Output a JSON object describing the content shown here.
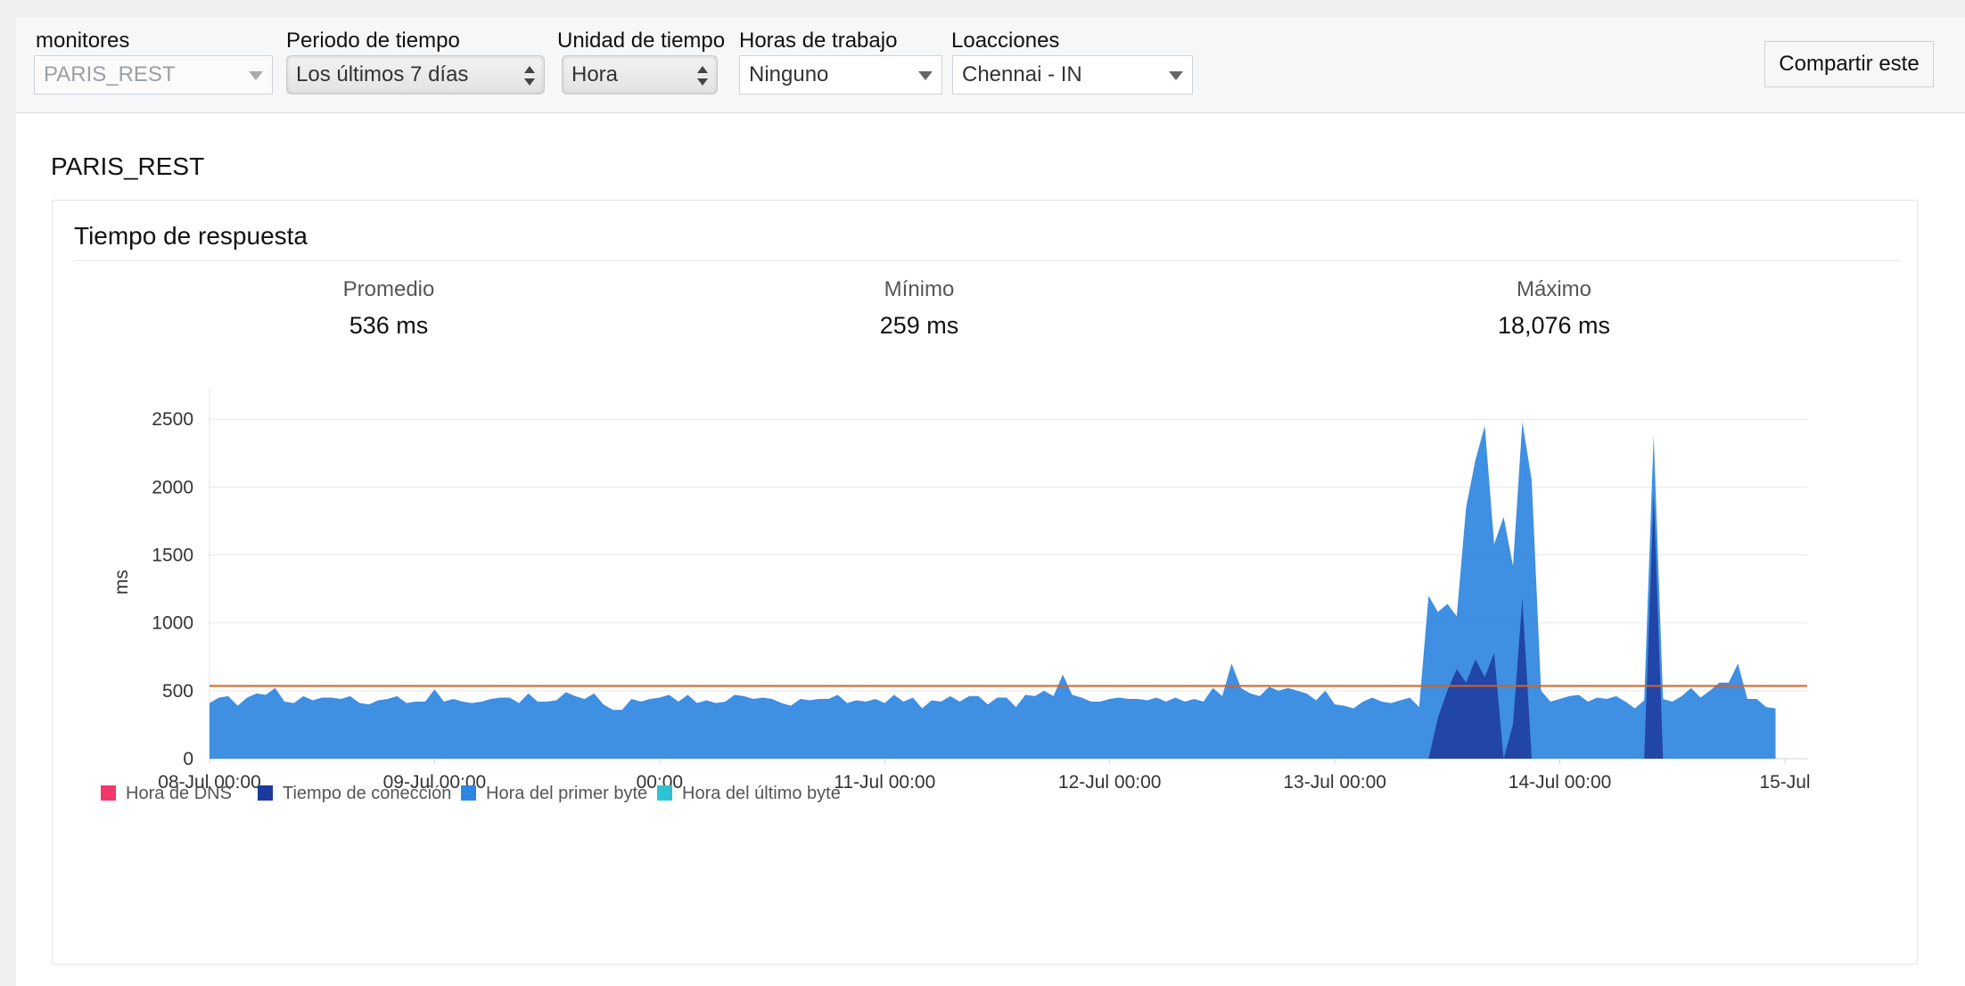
{
  "filters": {
    "monitors": {
      "label": "monitores",
      "value": "PARIS_REST"
    },
    "period": {
      "label": "Periodo de tiempo",
      "value": "Los últimos 7 días"
    },
    "unit": {
      "label": "Unidad de tiempo",
      "value": "Hora"
    },
    "work_hours": {
      "label": "Horas de trabajo",
      "value": "Ninguno"
    },
    "locations": {
      "label": "Loacciones",
      "value": "Chennai - IN"
    }
  },
  "share_label": "Compartir este",
  "monitor_title": "PARIS_REST",
  "card": {
    "title": "Tiempo de respuesta",
    "stats": {
      "avg": {
        "label": "Promedio",
        "value": "536 ms"
      },
      "min": {
        "label": "Mínimo",
        "value": "259 ms"
      },
      "max": {
        "label": "Máximo",
        "value": "18,076 ms"
      }
    }
  },
  "colors": {
    "dns": "#f0386b",
    "connection": "#1c3a9c",
    "first_byte": "#2f86e0",
    "last_byte": "#2ec3d2",
    "average_line": "#e0601a"
  },
  "chart_data": {
    "type": "area",
    "ylabel": "ms",
    "ylim": [
      0,
      2600
    ],
    "yticks": [
      0,
      500,
      1000,
      1500,
      2000,
      2500
    ],
    "x_tick_labels": [
      "08-Jul 00:00",
      "09-Jul 00:00",
      "00:00",
      "11-Jul 00:00",
      "12-Jul 00:00",
      "13-Jul 00:00",
      "14-Jul 00:00",
      "15-Jul"
    ],
    "x_range_hours": [
      0,
      168
    ],
    "average_line_ms": 536,
    "legend": [
      {
        "name": "Hora de DNS",
        "color_key": "dns"
      },
      {
        "name": "Tiempo de conección",
        "color_key": "connection"
      },
      {
        "name": "Hora del primer byte",
        "color_key": "first_byte"
      },
      {
        "name": "Hora del último byte",
        "color_key": "last_byte"
      }
    ],
    "series": [
      {
        "name": "Hora del primer byte",
        "color_key": "first_byte",
        "points": [
          [
            0,
            410
          ],
          [
            1,
            450
          ],
          [
            2,
            460
          ],
          [
            3,
            390
          ],
          [
            4,
            450
          ],
          [
            5,
            480
          ],
          [
            6,
            470
          ],
          [
            7,
            520
          ],
          [
            8,
            420
          ],
          [
            9,
            410
          ],
          [
            10,
            460
          ],
          [
            11,
            430
          ],
          [
            12,
            450
          ],
          [
            13,
            450
          ],
          [
            14,
            440
          ],
          [
            15,
            460
          ],
          [
            16,
            410
          ],
          [
            17,
            400
          ],
          [
            18,
            430
          ],
          [
            19,
            440
          ],
          [
            20,
            460
          ],
          [
            21,
            410
          ],
          [
            22,
            420
          ],
          [
            23,
            420
          ],
          [
            24,
            510
          ],
          [
            25,
            420
          ],
          [
            26,
            440
          ],
          [
            27,
            420
          ],
          [
            28,
            410
          ],
          [
            29,
            420
          ],
          [
            30,
            440
          ],
          [
            31,
            450
          ],
          [
            32,
            450
          ],
          [
            33,
            410
          ],
          [
            34,
            480
          ],
          [
            35,
            420
          ],
          [
            36,
            420
          ],
          [
            37,
            430
          ],
          [
            38,
            490
          ],
          [
            39,
            460
          ],
          [
            40,
            440
          ],
          [
            41,
            480
          ],
          [
            42,
            400
          ],
          [
            43,
            360
          ],
          [
            44,
            360
          ],
          [
            45,
            440
          ],
          [
            46,
            420
          ],
          [
            47,
            440
          ],
          [
            48,
            450
          ],
          [
            49,
            470
          ],
          [
            50,
            420
          ],
          [
            51,
            470
          ],
          [
            52,
            410
          ],
          [
            53,
            430
          ],
          [
            54,
            410
          ],
          [
            55,
            420
          ],
          [
            56,
            470
          ],
          [
            57,
            460
          ],
          [
            58,
            440
          ],
          [
            59,
            450
          ],
          [
            60,
            440
          ],
          [
            61,
            410
          ],
          [
            62,
            390
          ],
          [
            63,
            440
          ],
          [
            64,
            430
          ],
          [
            65,
            440
          ],
          [
            66,
            440
          ],
          [
            67,
            470
          ],
          [
            68,
            410
          ],
          [
            69,
            430
          ],
          [
            70,
            420
          ],
          [
            71,
            440
          ],
          [
            72,
            410
          ],
          [
            73,
            470
          ],
          [
            74,
            420
          ],
          [
            75,
            450
          ],
          [
            76,
            370
          ],
          [
            77,
            430
          ],
          [
            78,
            420
          ],
          [
            79,
            460
          ],
          [
            80,
            420
          ],
          [
            81,
            460
          ],
          [
            82,
            460
          ],
          [
            83,
            400
          ],
          [
            84,
            450
          ],
          [
            85,
            450
          ],
          [
            86,
            380
          ],
          [
            87,
            470
          ],
          [
            88,
            460
          ],
          [
            89,
            500
          ],
          [
            90,
            460
          ],
          [
            91,
            620
          ],
          [
            92,
            470
          ],
          [
            93,
            450
          ],
          [
            94,
            420
          ],
          [
            95,
            420
          ],
          [
            96,
            440
          ],
          [
            97,
            450
          ],
          [
            98,
            440
          ],
          [
            99,
            440
          ],
          [
            100,
            430
          ],
          [
            101,
            450
          ],
          [
            102,
            420
          ],
          [
            103,
            450
          ],
          [
            104,
            420
          ],
          [
            105,
            440
          ],
          [
            106,
            420
          ],
          [
            107,
            520
          ],
          [
            108,
            460
          ],
          [
            109,
            700
          ],
          [
            110,
            520
          ],
          [
            111,
            480
          ],
          [
            112,
            460
          ],
          [
            113,
            530
          ],
          [
            114,
            500
          ],
          [
            115,
            520
          ],
          [
            116,
            500
          ],
          [
            117,
            480
          ],
          [
            118,
            430
          ],
          [
            119,
            500
          ],
          [
            120,
            400
          ],
          [
            121,
            390
          ],
          [
            122,
            370
          ],
          [
            123,
            420
          ],
          [
            124,
            450
          ],
          [
            125,
            420
          ],
          [
            126,
            410
          ],
          [
            127,
            430
          ],
          [
            128,
            450
          ],
          [
            129,
            380
          ],
          [
            130,
            1200
          ],
          [
            131,
            1080
          ],
          [
            132,
            1140
          ],
          [
            133,
            1050
          ],
          [
            134,
            1850
          ],
          [
            135,
            2200
          ],
          [
            136,
            2450
          ],
          [
            137,
            1580
          ],
          [
            138,
            1780
          ],
          [
            139,
            1420
          ],
          [
            140,
            2480
          ],
          [
            141,
            2050
          ],
          [
            142,
            500
          ],
          [
            143,
            420
          ],
          [
            144,
            440
          ],
          [
            145,
            460
          ],
          [
            146,
            470
          ],
          [
            147,
            420
          ],
          [
            148,
            450
          ],
          [
            149,
            440
          ],
          [
            150,
            460
          ],
          [
            151,
            420
          ],
          [
            152,
            370
          ],
          [
            153,
            430
          ],
          [
            154,
            2380
          ],
          [
            155,
            440
          ],
          [
            156,
            420
          ],
          [
            157,
            460
          ],
          [
            158,
            520
          ],
          [
            159,
            450
          ],
          [
            160,
            500
          ],
          [
            161,
            560
          ],
          [
            162,
            560
          ],
          [
            163,
            700
          ],
          [
            164,
            440
          ],
          [
            165,
            440
          ],
          [
            166,
            380
          ],
          [
            167,
            370
          ]
        ]
      },
      {
        "name": "Tiempo de conección",
        "color_key": "connection",
        "points": [
          [
            130,
            0
          ],
          [
            131,
            300
          ],
          [
            132,
            500
          ],
          [
            133,
            660
          ],
          [
            134,
            560
          ],
          [
            135,
            730
          ],
          [
            136,
            600
          ],
          [
            137,
            780
          ],
          [
            138,
            0
          ],
          [
            139,
            250
          ],
          [
            140,
            1180
          ],
          [
            141,
            0
          ],
          [
            153,
            0
          ],
          [
            154,
            1950
          ],
          [
            155,
            0
          ]
        ]
      }
    ]
  }
}
